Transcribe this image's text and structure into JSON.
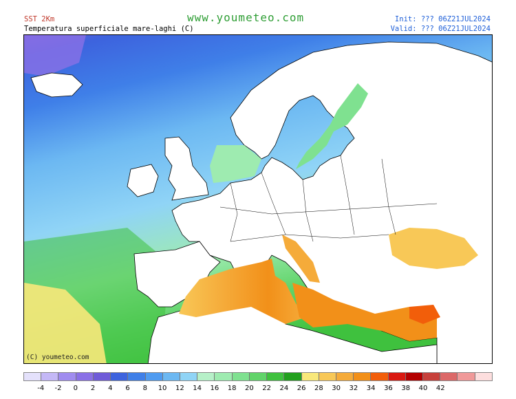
{
  "header": {
    "product": "SST 2Km",
    "parameter": "Temperatura superficiale mare-laghi (C)",
    "site": "www.youmeteo.com",
    "init": "Init: ??? 06Z21JUL2024",
    "valid": "Valid: ??? 06Z21JUL2024"
  },
  "map": {
    "region": "Europe",
    "copyright": "(C) youmeteo.com"
  },
  "legend": {
    "colors": [
      "#e4e1fb",
      "#c4b8f6",
      "#a08cef",
      "#8a70e6",
      "#6f5bd8",
      "#3d63de",
      "#3f7fe8",
      "#4f9bf0",
      "#6cb8f2",
      "#90d4f6",
      "#b6f0c8",
      "#9eebb0",
      "#7fe190",
      "#61d46a",
      "#3fc13e",
      "#22a01e",
      "#f8e87a",
      "#f8c857",
      "#f5ab3a",
      "#f29019",
      "#f25e0a",
      "#d91810",
      "#b30000",
      "#c7403b",
      "#dc6868",
      "#f09999",
      "#fddede"
    ],
    "ticks": [
      "-4",
      "-2",
      "0",
      "2",
      "4",
      "6",
      "8",
      "10",
      "12",
      "14",
      "16",
      "18",
      "20",
      "22",
      "24",
      "26",
      "28",
      "30",
      "32",
      "34",
      "36",
      "38",
      "40",
      "42"
    ]
  }
}
